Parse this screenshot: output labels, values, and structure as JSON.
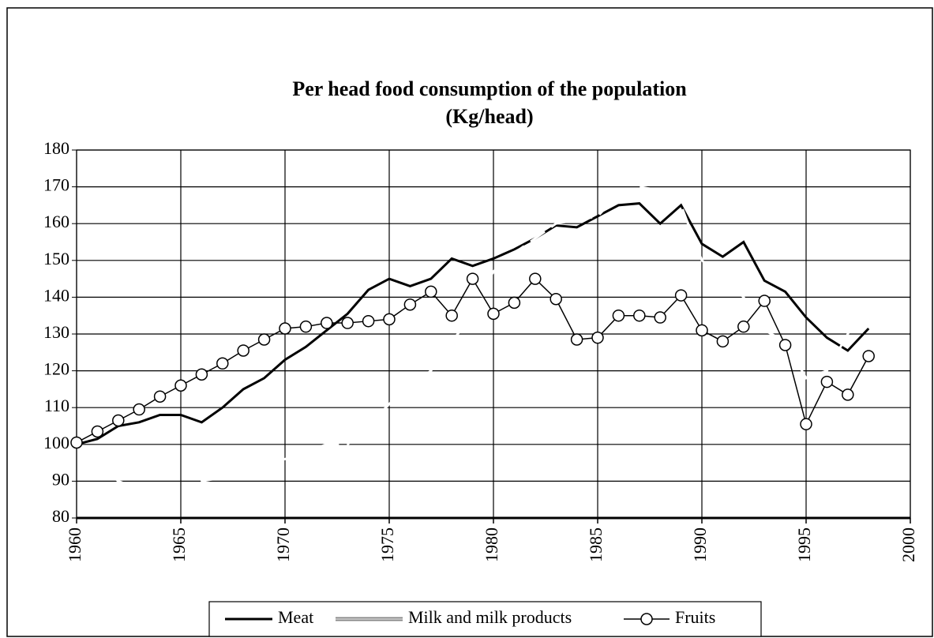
{
  "chart_data": {
    "type": "line",
    "title": "Per head food consumption of the population",
    "subtitle": "(Kg/head)",
    "x": [
      1960,
      1961,
      1962,
      1963,
      1964,
      1965,
      1966,
      1967,
      1968,
      1969,
      1970,
      1971,
      1972,
      1973,
      1974,
      1975,
      1976,
      1977,
      1978,
      1979,
      1980,
      1981,
      1982,
      1983,
      1984,
      1985,
      1986,
      1987,
      1988,
      1989,
      1990,
      1991,
      1992,
      1993,
      1994,
      1995,
      1996,
      1997,
      1998
    ],
    "series": [
      {
        "name": "Meat",
        "color": "#000000",
        "linestyle": "solid",
        "values": [
          100,
          101.5,
          105,
          106,
          108,
          108,
          106,
          110,
          115,
          118,
          123,
          126.5,
          131,
          135.5,
          142,
          145,
          143,
          145,
          150.5,
          148.5,
          150.5,
          153,
          156,
          159.5,
          159,
          162,
          165,
          165.5,
          160,
          165,
          154.5,
          151,
          155,
          144.5,
          141.5,
          134.5,
          129,
          125.5,
          131.5
        ]
      },
      {
        "name": "Milk and milk products",
        "color": "#ffffff",
        "linestyle": "dashed",
        "values": [
          100,
          95,
          90,
          88,
          86,
          84,
          90,
          91,
          93,
          95,
          96,
          98,
          100,
          100,
          105,
          111,
          116,
          120,
          128,
          135,
          147,
          152,
          156,
          160,
          161,
          162,
          168,
          170,
          169,
          165,
          150,
          145,
          140,
          131,
          128,
          118,
          120,
          130,
          140
        ]
      },
      {
        "name": "Fruits",
        "color": "#000000",
        "linestyle": "solid",
        "marker": "circle",
        "values": [
          100.5,
          103.5,
          106.5,
          109.5,
          113,
          116,
          119,
          122,
          125.5,
          128.5,
          131.5,
          132,
          133,
          133,
          133.5,
          134,
          138,
          141.5,
          135,
          145,
          135.5,
          138.5,
          145,
          139.5,
          128.5,
          129,
          135,
          135,
          134.5,
          140.5,
          131,
          128,
          132,
          139,
          127,
          105.5,
          117,
          113.5,
          124
        ]
      }
    ],
    "xlim": [
      1960,
      2000
    ],
    "xticks": [
      1960,
      1965,
      1970,
      1975,
      1980,
      1985,
      1990,
      1995,
      2000
    ],
    "ylim": [
      80,
      180
    ],
    "yticks": [
      80,
      90,
      100,
      110,
      120,
      130,
      140,
      150,
      160,
      170,
      180
    ],
    "grid": true,
    "legend": "bottom"
  }
}
